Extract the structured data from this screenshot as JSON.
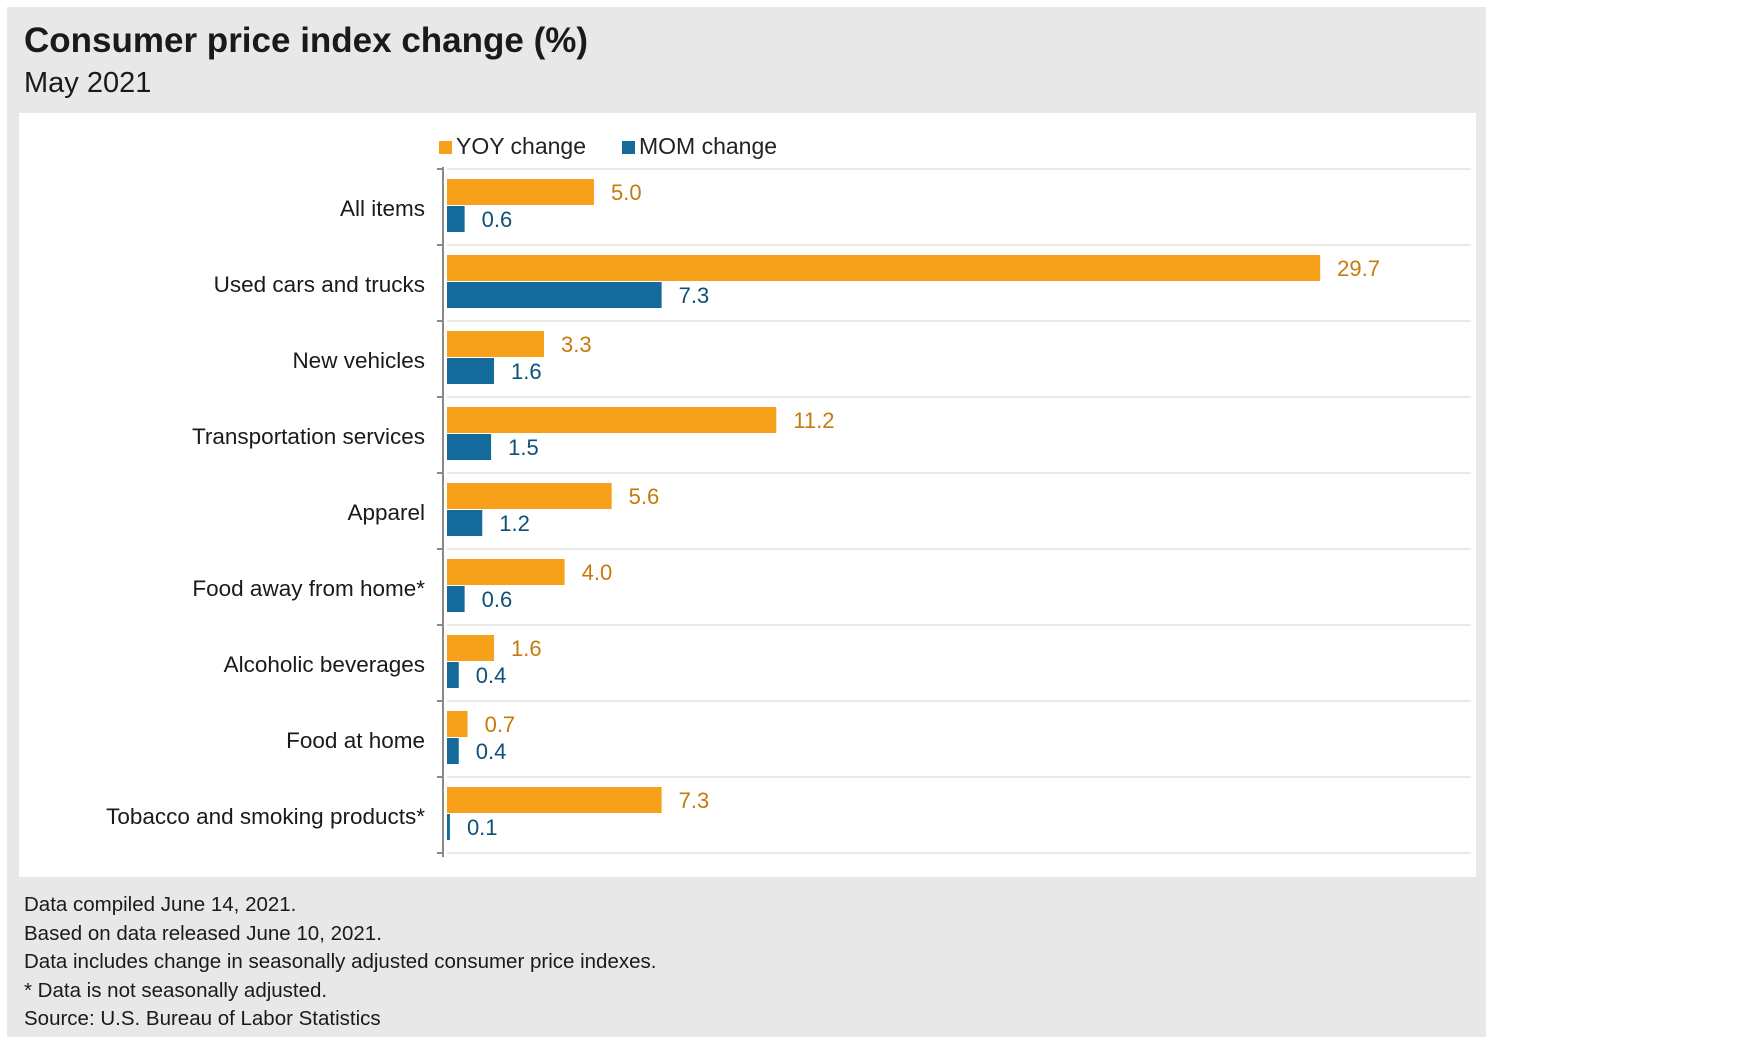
{
  "colors": {
    "yoy": "#f7a11a",
    "mom": "#136a9b",
    "yoy_label": "#c67a0e",
    "mom_label": "#0f4f78",
    "grid": "#dcdcdc",
    "axis": "#8a8a8a"
  },
  "chart_data": {
    "type": "bar",
    "orientation": "horizontal",
    "title": "Consumer price index change (%)",
    "subtitle": "May 2021",
    "legend_position": "top",
    "grid": true,
    "categories": [
      "All items",
      "Used cars and trucks",
      "New vehicles",
      "Transportation services",
      "Apparel",
      "Food away from home*",
      "Alcoholic beverages",
      "Food at home",
      "Tobacco and smoking products*"
    ],
    "series": [
      {
        "name": "YOY change",
        "values": [
          5.0,
          29.7,
          3.3,
          11.2,
          5.6,
          4.0,
          1.6,
          0.7,
          7.3
        ]
      },
      {
        "name": "MOM change",
        "values": [
          0.6,
          7.3,
          1.6,
          1.5,
          1.2,
          0.6,
          0.4,
          0.4,
          0.1
        ]
      }
    ],
    "xlim": [
      0,
      34
    ]
  },
  "notes": [
    "Data compiled June 14, 2021.",
    "Based on data released June 10, 2021.",
    "Data includes change in seasonally adjusted consumer price indexes.",
    "* Data is not seasonally adjusted.",
    "Source: U.S. Bureau of Labor Statistics"
  ]
}
